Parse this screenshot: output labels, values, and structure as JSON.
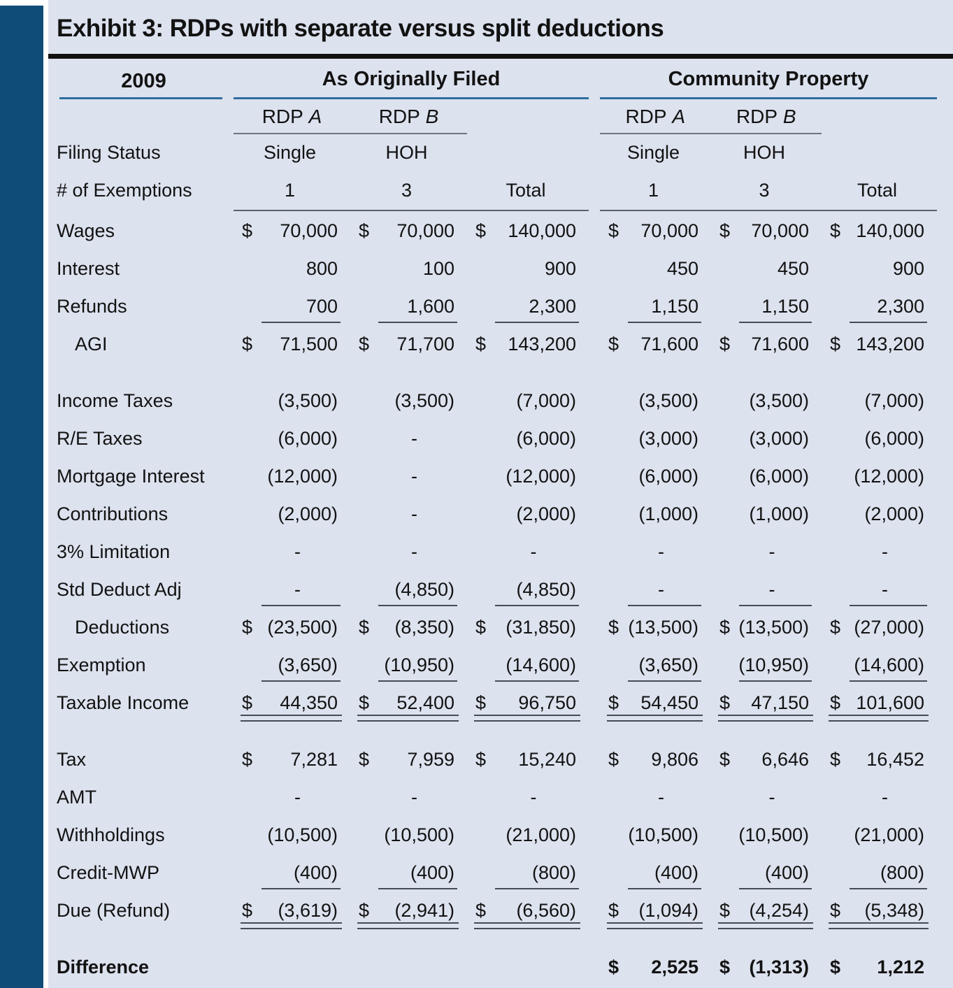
{
  "page": {
    "title": "Exhibit 3: RDPs with separate versus split deductions"
  },
  "colors": {
    "accent_bar": "#0f4c78",
    "background": "#dce2ee",
    "header_rule_blue": "#2e6d9e",
    "title_divider": "#111111",
    "text": "#121212"
  },
  "table": {
    "year_label": "2009",
    "group_headers": [
      "As Originally Filed",
      "Community Property"
    ],
    "rdp": {
      "prefix": "RDP",
      "a": "A",
      "b": "B"
    },
    "rows": [
      {
        "label": "Filing Status",
        "type": "ctr",
        "cells": [
          "Single",
          "HOH",
          "",
          "Single",
          "HOH",
          ""
        ]
      },
      {
        "label": "# of Exemptions",
        "type": "ctr",
        "group_rule": true,
        "cells": [
          "1",
          "3",
          "Total",
          "1",
          "3",
          "Total"
        ]
      },
      {
        "label": "Wages",
        "cells": [
          [
            "$",
            "70,000"
          ],
          [
            "$",
            "70,000"
          ],
          [
            "$",
            "140,000"
          ],
          [
            "$",
            "70,000"
          ],
          [
            "$",
            "70,000"
          ],
          [
            "$",
            "140,000"
          ]
        ]
      },
      {
        "label": "Interest",
        "cells": [
          [
            "",
            "800"
          ],
          [
            "",
            "100"
          ],
          [
            "",
            "900"
          ],
          [
            "",
            "450"
          ],
          [
            "",
            "450"
          ],
          [
            "",
            "900"
          ]
        ]
      },
      {
        "label": "Refunds",
        "u": "single",
        "cells": [
          [
            "",
            "700"
          ],
          [
            "",
            "1,600"
          ],
          [
            "",
            "2,300"
          ],
          [
            "",
            "1,150"
          ],
          [
            "",
            "1,150"
          ],
          [
            "",
            "2,300"
          ]
        ]
      },
      {
        "label": "AGI",
        "indent": true,
        "cells": [
          [
            "$",
            "71,500"
          ],
          [
            "$",
            "71,700"
          ],
          [
            "$",
            "143,200"
          ],
          [
            "$",
            "71,600"
          ],
          [
            "$",
            "71,600"
          ],
          [
            "$",
            "143,200"
          ]
        ]
      },
      {
        "label": "Income Taxes",
        "gap": true,
        "cells": [
          [
            "",
            "(3,500)"
          ],
          [
            "",
            "(3,500)"
          ],
          [
            "",
            "(7,000)"
          ],
          [
            "",
            "(3,500)"
          ],
          [
            "",
            "(3,500)"
          ],
          [
            "",
            "(7,000)"
          ]
        ]
      },
      {
        "label": "R/E Taxes",
        "cells": [
          [
            "",
            "(6,000)"
          ],
          [
            "",
            "-"
          ],
          [
            "",
            "(6,000)"
          ],
          [
            "",
            "(3,000)"
          ],
          [
            "",
            "(3,000)"
          ],
          [
            "",
            "(6,000)"
          ]
        ]
      },
      {
        "label": "Mortgage Interest",
        "cells": [
          [
            "",
            "(12,000)"
          ],
          [
            "",
            "-"
          ],
          [
            "",
            "(12,000)"
          ],
          [
            "",
            "(6,000)"
          ],
          [
            "",
            "(6,000)"
          ],
          [
            "",
            "(12,000)"
          ]
        ]
      },
      {
        "label": "Contributions",
        "cells": [
          [
            "",
            "(2,000)"
          ],
          [
            "",
            "-"
          ],
          [
            "",
            "(2,000)"
          ],
          [
            "",
            "(1,000)"
          ],
          [
            "",
            "(1,000)"
          ],
          [
            "",
            "(2,000)"
          ]
        ]
      },
      {
        "label": "3% Limitation",
        "cells": [
          [
            "",
            "-"
          ],
          [
            "",
            "-"
          ],
          [
            "",
            "-"
          ],
          [
            "",
            "-"
          ],
          [
            "",
            "-"
          ],
          [
            "",
            "-"
          ]
        ]
      },
      {
        "label": "Std Deduct Adj",
        "u": "single",
        "cells": [
          [
            "",
            "-"
          ],
          [
            "",
            "(4,850)"
          ],
          [
            "",
            "(4,850)"
          ],
          [
            "",
            "-"
          ],
          [
            "",
            "-"
          ],
          [
            "",
            "-"
          ]
        ]
      },
      {
        "label": "Deductions",
        "indent": true,
        "cells": [
          [
            "$",
            "(23,500)"
          ],
          [
            "$",
            "(8,350)"
          ],
          [
            "$",
            "(31,850)"
          ],
          [
            "$",
            "(13,500)"
          ],
          [
            "$",
            "(13,500)"
          ],
          [
            "$",
            "(27,000)"
          ]
        ]
      },
      {
        "label": "Exemption",
        "u": "single",
        "cells": [
          [
            "",
            "(3,650)"
          ],
          [
            "",
            "(10,950)"
          ],
          [
            "",
            "(14,600)"
          ],
          [
            "",
            "(3,650)"
          ],
          [
            "",
            "(10,950)"
          ],
          [
            "",
            "(14,600)"
          ]
        ]
      },
      {
        "label": "Taxable Income",
        "u": "double",
        "cells": [
          [
            "$",
            "44,350"
          ],
          [
            "$",
            "52,400"
          ],
          [
            "$",
            "96,750"
          ],
          [
            "$",
            "54,450"
          ],
          [
            "$",
            "47,150"
          ],
          [
            "$",
            "101,600"
          ]
        ]
      },
      {
        "label": "Tax",
        "gap": true,
        "cells": [
          [
            "$",
            "7,281"
          ],
          [
            "$",
            "7,959"
          ],
          [
            "$",
            "15,240"
          ],
          [
            "$",
            "9,806"
          ],
          [
            "$",
            "6,646"
          ],
          [
            "$",
            "16,452"
          ]
        ]
      },
      {
        "label": "AMT",
        "cells": [
          [
            "",
            "-"
          ],
          [
            "",
            "-"
          ],
          [
            "",
            "-"
          ],
          [
            "",
            "-"
          ],
          [
            "",
            "-"
          ],
          [
            "",
            "-"
          ]
        ]
      },
      {
        "label": "Withholdings",
        "cells": [
          [
            "",
            "(10,500)"
          ],
          [
            "",
            "(10,500)"
          ],
          [
            "",
            "(21,000)"
          ],
          [
            "",
            "(10,500)"
          ],
          [
            "",
            "(10,500)"
          ],
          [
            "",
            "(21,000)"
          ]
        ]
      },
      {
        "label": "Credit-MWP",
        "u": "single",
        "cells": [
          [
            "",
            "(400)"
          ],
          [
            "",
            "(400)"
          ],
          [
            "",
            "(800)"
          ],
          [
            "",
            "(400)"
          ],
          [
            "",
            "(400)"
          ],
          [
            "",
            "(800)"
          ]
        ]
      },
      {
        "label": "Due (Refund)",
        "u": "double",
        "cells": [
          [
            "$",
            "(3,619)"
          ],
          [
            "$",
            "(2,941)"
          ],
          [
            "$",
            "(6,560)"
          ],
          [
            "$",
            "(1,094)"
          ],
          [
            "$",
            "(4,254)"
          ],
          [
            "$",
            "(5,348)"
          ]
        ]
      },
      {
        "label": "Difference",
        "bold": true,
        "gap": true,
        "cells": [
          "",
          "",
          "",
          [
            "$",
            "2,525"
          ],
          [
            "$",
            "(1,313)"
          ],
          [
            "$",
            "1,212"
          ]
        ]
      }
    ]
  }
}
